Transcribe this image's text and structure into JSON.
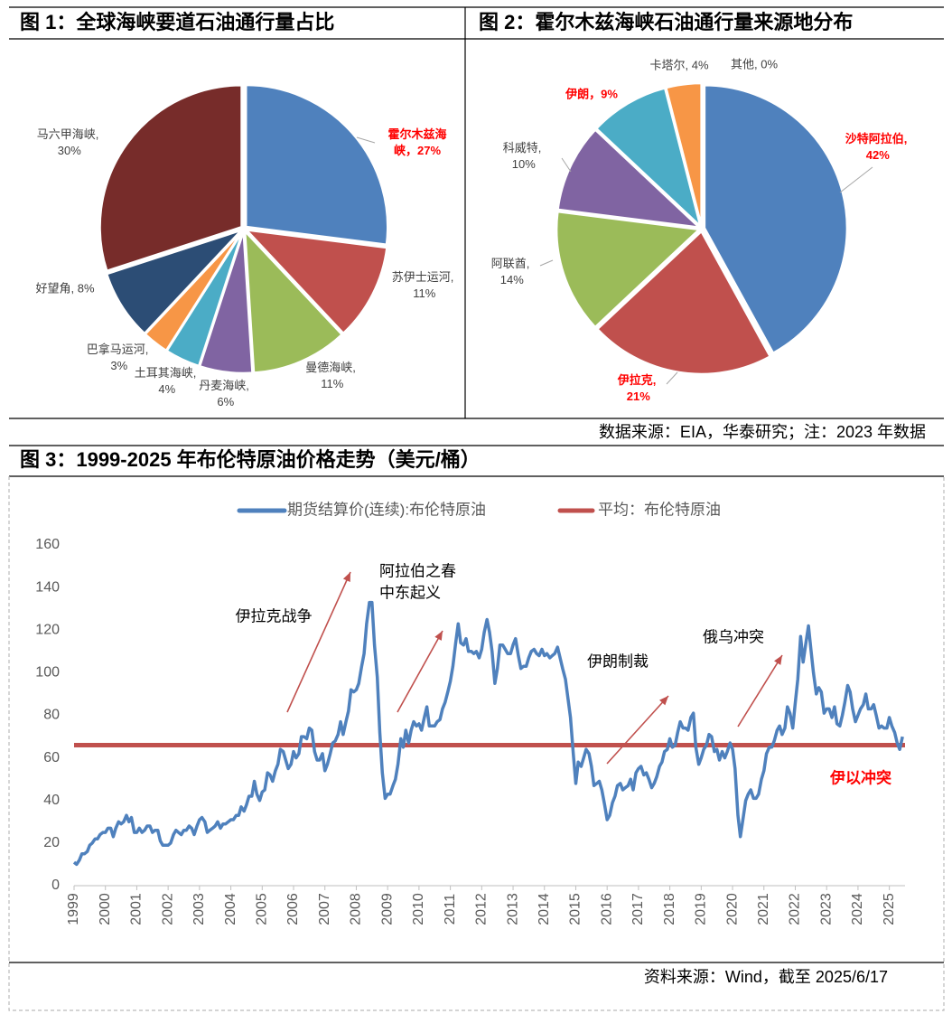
{
  "chart_data": [
    {
      "type": "pie",
      "title": "图 1：全球海峡要道石油通行量占比",
      "categories": [
        "霍尔木兹海峡",
        "苏伊士运河",
        "曼德海峡",
        "丹麦海峡",
        "土耳其海峡",
        "巴拿马运河",
        "好望角",
        "马六甲海峡"
      ],
      "values": [
        27,
        11,
        11,
        6,
        4,
        3,
        8,
        30
      ],
      "value_labels": [
        "霍尔木兹海峡，27%",
        "苏伊士运河, 11%",
        "曼德海峡, 11%",
        "丹麦海峡, 6%",
        "土耳其海峡, 4%",
        "巴拿马运河, 3%",
        "好望角, 8%",
        "马六甲海峡, 30%"
      ],
      "colors": [
        "#4f81bd",
        "#c0504d",
        "#9bbb59",
        "#8064a2",
        "#4bacc6",
        "#f79646",
        "#2c4d75",
        "#772c2a"
      ],
      "label_colors": [
        "#ff0000",
        "#404040",
        "#404040",
        "#404040",
        "#404040",
        "#404040",
        "#404040",
        "#404040"
      ]
    },
    {
      "type": "pie",
      "title": "图 2：霍尔木兹海峡石油通行量来源地分布",
      "categories": [
        "沙特阿拉伯",
        "伊拉克",
        "阿联酋",
        "科威特",
        "伊朗",
        "卡塔尔",
        "其他"
      ],
      "values": [
        42,
        21,
        14,
        10,
        9,
        4,
        0
      ],
      "value_labels": [
        "沙特阿拉伯, 42%",
        "伊拉克, 21%",
        "阿联酋, 14%",
        "科威特, 10%",
        "伊朗，9%",
        "卡塔尔, 4%",
        "其他, 0%"
      ],
      "colors": [
        "#4f81bd",
        "#c0504d",
        "#9bbb59",
        "#8064a2",
        "#4bacc6",
        "#f79646",
        "#2c4d75"
      ],
      "label_colors": [
        "#ff0000",
        "#ff0000",
        "#404040",
        "#404040",
        "#ff0000",
        "#404040",
        "#404040"
      ]
    },
    {
      "type": "line",
      "title": "图 3：1999-2025 年布伦特原油价格走势（美元/桶）",
      "x": [
        1999,
        1999.08,
        1999.17,
        1999.25,
        1999.33,
        1999.42,
        1999.5,
        1999.58,
        1999.67,
        1999.75,
        1999.83,
        1999.92,
        2000,
        2000.08,
        2000.17,
        2000.25,
        2000.33,
        2000.42,
        2000.5,
        2000.58,
        2000.67,
        2000.75,
        2000.83,
        2000.92,
        2001,
        2001.08,
        2001.17,
        2001.25,
        2001.33,
        2001.42,
        2001.5,
        2001.58,
        2001.67,
        2001.75,
        2001.83,
        2001.92,
        2002,
        2002.08,
        2002.17,
        2002.25,
        2002.33,
        2002.42,
        2002.5,
        2002.58,
        2002.67,
        2002.75,
        2002.83,
        2002.92,
        2003,
        2003.08,
        2003.17,
        2003.25,
        2003.33,
        2003.42,
        2003.5,
        2003.58,
        2003.67,
        2003.75,
        2003.83,
        2003.92,
        2004,
        2004.08,
        2004.17,
        2004.25,
        2004.33,
        2004.42,
        2004.5,
        2004.58,
        2004.67,
        2004.75,
        2004.83,
        2004.92,
        2005,
        2005.08,
        2005.17,
        2005.25,
        2005.33,
        2005.42,
        2005.5,
        2005.58,
        2005.67,
        2005.75,
        2005.83,
        2005.92,
        2006,
        2006.08,
        2006.17,
        2006.25,
        2006.33,
        2006.42,
        2006.5,
        2006.58,
        2006.67,
        2006.75,
        2006.83,
        2006.92,
        2007,
        2007.08,
        2007.17,
        2007.25,
        2007.33,
        2007.42,
        2007.5,
        2007.58,
        2007.67,
        2007.75,
        2007.83,
        2007.92,
        2008,
        2008.08,
        2008.17,
        2008.25,
        2008.33,
        2008.42,
        2008.5,
        2008.58,
        2008.67,
        2008.75,
        2008.83,
        2008.92,
        2009,
        2009.08,
        2009.17,
        2009.25,
        2009.33,
        2009.42,
        2009.5,
        2009.58,
        2009.67,
        2009.75,
        2009.83,
        2009.92,
        2010,
        2010.08,
        2010.17,
        2010.25,
        2010.33,
        2010.42,
        2010.5,
        2010.58,
        2010.67,
        2010.75,
        2010.83,
        2010.92,
        2011,
        2011.08,
        2011.17,
        2011.25,
        2011.33,
        2011.42,
        2011.5,
        2011.58,
        2011.67,
        2011.75,
        2011.83,
        2011.92,
        2012,
        2012.08,
        2012.17,
        2012.25,
        2012.33,
        2012.42,
        2012.5,
        2012.58,
        2012.67,
        2012.75,
        2012.83,
        2012.92,
        2013,
        2013.08,
        2013.17,
        2013.25,
        2013.33,
        2013.42,
        2013.5,
        2013.58,
        2013.67,
        2013.75,
        2013.83,
        2013.92,
        2014,
        2014.08,
        2014.17,
        2014.25,
        2014.33,
        2014.42,
        2014.5,
        2014.58,
        2014.67,
        2014.75,
        2014.83,
        2014.92,
        2015,
        2015.08,
        2015.17,
        2015.25,
        2015.33,
        2015.42,
        2015.5,
        2015.58,
        2015.67,
        2015.75,
        2015.83,
        2015.92,
        2016,
        2016.08,
        2016.17,
        2016.25,
        2016.33,
        2016.42,
        2016.5,
        2016.58,
        2016.67,
        2016.75,
        2016.83,
        2016.92,
        2017,
        2017.08,
        2017.17,
        2017.25,
        2017.33,
        2017.42,
        2017.5,
        2017.58,
        2017.67,
        2017.75,
        2017.83,
        2017.92,
        2018,
        2018.08,
        2018.17,
        2018.25,
        2018.33,
        2018.42,
        2018.5,
        2018.58,
        2018.67,
        2018.75,
        2018.83,
        2018.92,
        2019,
        2019.08,
        2019.17,
        2019.25,
        2019.33,
        2019.42,
        2019.5,
        2019.58,
        2019.67,
        2019.75,
        2019.83,
        2019.92,
        2020,
        2020.08,
        2020.17,
        2020.25,
        2020.33,
        2020.42,
        2020.5,
        2020.58,
        2020.67,
        2020.75,
        2020.83,
        2020.92,
        2021,
        2021.08,
        2021.17,
        2021.25,
        2021.33,
        2021.42,
        2021.5,
        2021.58,
        2021.67,
        2021.75,
        2021.83,
        2021.92,
        2022,
        2022.08,
        2022.17,
        2022.25,
        2022.33,
        2022.42,
        2022.5,
        2022.58,
        2022.67,
        2022.75,
        2022.83,
        2022.92,
        2023,
        2023.08,
        2023.17,
        2023.25,
        2023.33,
        2023.42,
        2023.5,
        2023.58,
        2023.67,
        2023.75,
        2023.83,
        2023.92,
        2024,
        2024.08,
        2024.17,
        2024.25,
        2024.33,
        2024.42,
        2024.5,
        2024.58,
        2024.67,
        2024.75,
        2024.83,
        2024.92,
        2025,
        2025.08,
        2025.17,
        2025.25,
        2025.33,
        2025.42
      ],
      "series": [
        {
          "name": "期货结算价(连续):布伦特原油",
          "color": "#4f81bd",
          "values": [
            11,
            10,
            12,
            15,
            15,
            16,
            19,
            20,
            22,
            22,
            24,
            25,
            25,
            27,
            27,
            23,
            27,
            30,
            29,
            30,
            33,
            30,
            32,
            25,
            25,
            27,
            25,
            26,
            28,
            28,
            25,
            26,
            26,
            21,
            19,
            19,
            19,
            20,
            24,
            26,
            25,
            24,
            26,
            26,
            28,
            27,
            24,
            28,
            31,
            32,
            30,
            25,
            26,
            27,
            28,
            30,
            27,
            29,
            29,
            30,
            31,
            31,
            33,
            33,
            37,
            35,
            38,
            42,
            42,
            49,
            43,
            40,
            44,
            45,
            53,
            52,
            49,
            54,
            57,
            64,
            63,
            59,
            55,
            57,
            63,
            60,
            62,
            70,
            70,
            69,
            74,
            73,
            63,
            59,
            59,
            62,
            54,
            57,
            62,
            67,
            68,
            71,
            77,
            71,
            77,
            82,
            92,
            91,
            92,
            95,
            103,
            109,
            123,
            133,
            133,
            113,
            98,
            72,
            53,
            41,
            43,
            43,
            47,
            50,
            57,
            69,
            65,
            73,
            67,
            73,
            77,
            75,
            76,
            73,
            79,
            84,
            75,
            75,
            75,
            77,
            78,
            83,
            86,
            91,
            96,
            103,
            114,
            123,
            114,
            113,
            116,
            110,
            110,
            109,
            110,
            107,
            111,
            119,
            125,
            119,
            110,
            95,
            102,
            113,
            113,
            111,
            109,
            109,
            113,
            116,
            108,
            102,
            103,
            103,
            107,
            110,
            111,
            109,
            108,
            111,
            108,
            109,
            107,
            108,
            109,
            112,
            107,
            102,
            97,
            88,
            79,
            62,
            48,
            58,
            56,
            60,
            64,
            62,
            56,
            47,
            48,
            49,
            45,
            38,
            31,
            33,
            39,
            42,
            47,
            48,
            45,
            46,
            47,
            50,
            45,
            53,
            55,
            56,
            52,
            53,
            50,
            46,
            48,
            51,
            56,
            58,
            63,
            64,
            69,
            65,
            66,
            72,
            77,
            74,
            74,
            73,
            79,
            81,
            65,
            57,
            60,
            64,
            66,
            71,
            70,
            63,
            64,
            59,
            63,
            60,
            63,
            67,
            64,
            55,
            33,
            23,
            31,
            40,
            43,
            45,
            41,
            41,
            43,
            50,
            54,
            62,
            65,
            65,
            68,
            73,
            75,
            71,
            74,
            84,
            81,
            74,
            86,
            97,
            117,
            105,
            113,
            122,
            111,
            100,
            90,
            93,
            91,
            81,
            83,
            83,
            79,
            84,
            76,
            75,
            80,
            86,
            94,
            91,
            83,
            77,
            80,
            83,
            85,
            90,
            83,
            83,
            85,
            80,
            74,
            75,
            74,
            74,
            79,
            75,
            72,
            67,
            64,
            70
          ]
        }
      ],
      "reference_lines": [
        {
          "name": "平均：布伦特原油",
          "color": "#c0504d",
          "value": 66
        }
      ],
      "xlim": [
        1999,
        2025.5
      ],
      "xticks": [
        1999,
        2000,
        2001,
        2002,
        2003,
        2004,
        2005,
        2006,
        2007,
        2008,
        2009,
        2010,
        2011,
        2012,
        2013,
        2014,
        2015,
        2016,
        2017,
        2018,
        2019,
        2020,
        2021,
        2022,
        2023,
        2024,
        2025
      ],
      "ylim": [
        0,
        160
      ],
      "yticks": [
        0,
        20,
        40,
        60,
        80,
        100,
        120,
        140,
        160
      ],
      "grid": false,
      "annotations": [
        "伊拉克战争",
        "阿拉伯之春",
        "中东起义",
        "伊朗制裁",
        "俄乌冲突",
        "伊以冲突"
      ]
    }
  ],
  "sources": [
    "数据来源：EIA，华泰研究；注：2023 年数据",
    "资料来源：Wind，截至 2025/6/17"
  ]
}
